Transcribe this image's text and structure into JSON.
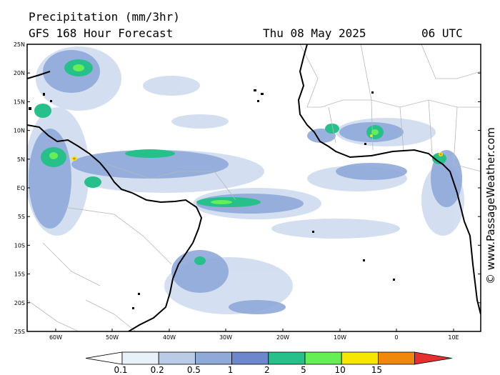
{
  "header": {
    "title": "Precipitation (mm/3hr)",
    "subtitle": "GFS 168 Hour Forecast",
    "date": "Thu 08 May 2025",
    "time": "06 UTC"
  },
  "credit": "© www.PassageWeather.com",
  "lat_labels": [
    "25N",
    "20N",
    "15N",
    "10N",
    "5N",
    "EQ",
    "5S",
    "10S",
    "15S",
    "20S",
    "25S"
  ],
  "lon_labels": [
    "60W",
    "50W",
    "40W",
    "30W",
    "20W",
    "10W",
    "0",
    "10E"
  ],
  "colorbar": {
    "labels": [
      "0.1",
      "0.2",
      "0.5",
      "1",
      "2",
      "5",
      "10",
      "15"
    ],
    "colors": [
      "#e8f0f8",
      "#b9cbe6",
      "#8fa9d9",
      "#6c87cc",
      "#27c08b",
      "#66ee55",
      "#f6e600",
      "#f0880c",
      "#e63030"
    ]
  },
  "colors": {
    "land": "#ffffff",
    "coast": "#000000",
    "borders": "#b8b8b8",
    "light_rain": "#cfdcef",
    "moderate_rain": "#8fa9d9",
    "heavy_rain": "#27c08b"
  }
}
